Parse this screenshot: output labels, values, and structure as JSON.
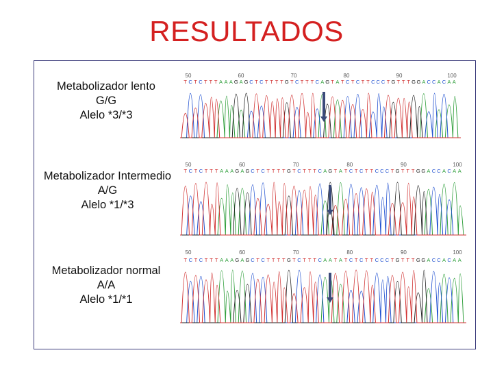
{
  "title": "RESULTADOS",
  "rows": [
    {
      "label": [
        "Metabolizador lento",
        "G/G",
        "Alelo *3/*3"
      ],
      "sequence": "TCTCTTTAAAGAGCTCTTTTGTCTTTCAGTATCTCTTCCCTGTTTGGACCACAA",
      "ticks": [
        "50",
        "60",
        "70",
        "80",
        "90",
        "100"
      ],
      "colors": {
        "A": "#2e9e3a",
        "C": "#2050d0",
        "G": "#222222",
        "T": "#d03030"
      }
    },
    {
      "label": [
        "Metabolizador Intermedio",
        "A/G",
        "Alelo *1/*3"
      ],
      "sequence": "TCTCTTTAAAGAGCTCTTTTGTCTTTCAGTATCTCTTCCCTGTTTGGACCACAA",
      "ticks": [
        "50",
        "60",
        "70",
        "80",
        "90",
        "100"
      ],
      "colors": {
        "A": "#2e9e3a",
        "C": "#2050d0",
        "G": "#222222",
        "T": "#d03030"
      }
    },
    {
      "label": [
        "Metabolizador normal",
        "A/A",
        "Alelo *1/*1"
      ],
      "sequence": "TCTCTTTAAAGAGCTCTTTTGTCTTTCAATATCTCTTCCCTGTTTGGACCACAA",
      "ticks": [
        "50",
        "60",
        "70",
        "80",
        "90",
        "100"
      ],
      "colors": {
        "A": "#2e9e3a",
        "C": "#2050d0",
        "G": "#222222",
        "T": "#d03030"
      }
    }
  ],
  "arrow_color": "#3a4a7a"
}
